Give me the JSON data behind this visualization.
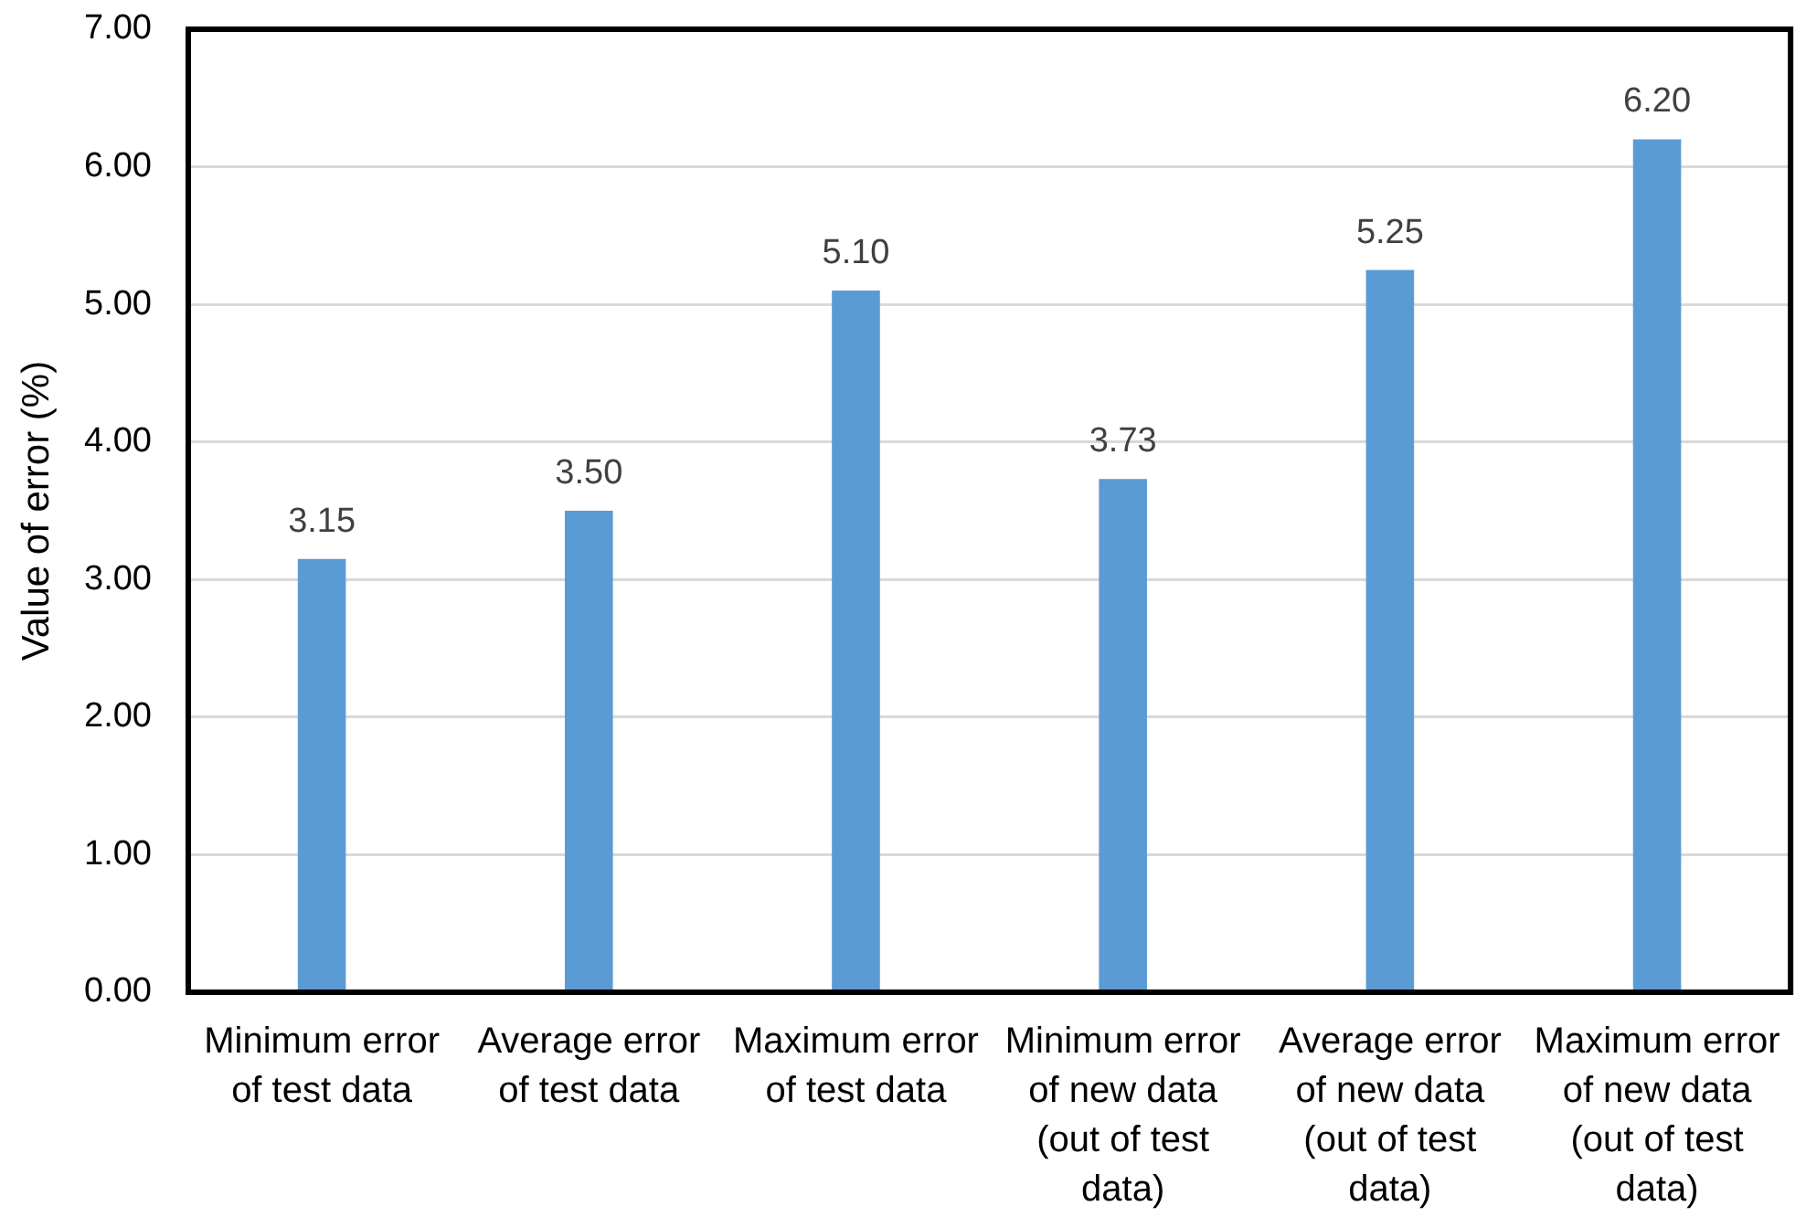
{
  "chart_data": {
    "type": "bar",
    "ylabel": "Value of error (%)",
    "categories": [
      "Minimum error of test data",
      "Average error of test data",
      "Maximum error of test data",
      "Minimum error of new data (out of test data)",
      "Average error of new data (out of test data)",
      "Maximum error of new data (out of test data)"
    ],
    "values": [
      3.15,
      3.5,
      5.1,
      3.73,
      5.25,
      6.2
    ],
    "value_labels": [
      "3.15",
      "3.50",
      "5.10",
      "3.73",
      "5.25",
      "6.20"
    ],
    "color": "#5b9bd5",
    "ylim": [
      0,
      7
    ],
    "yticks": [
      {
        "value": 0,
        "label": "0.00"
      },
      {
        "value": 1,
        "label": "1.00"
      },
      {
        "value": 2,
        "label": "2.00"
      },
      {
        "value": 3,
        "label": "3.00"
      },
      {
        "value": 4,
        "label": "4.00"
      },
      {
        "value": 5,
        "label": "5.00"
      },
      {
        "value": 6,
        "label": "6.00"
      },
      {
        "value": 7,
        "label": "7.00"
      }
    ],
    "grid": "y"
  }
}
